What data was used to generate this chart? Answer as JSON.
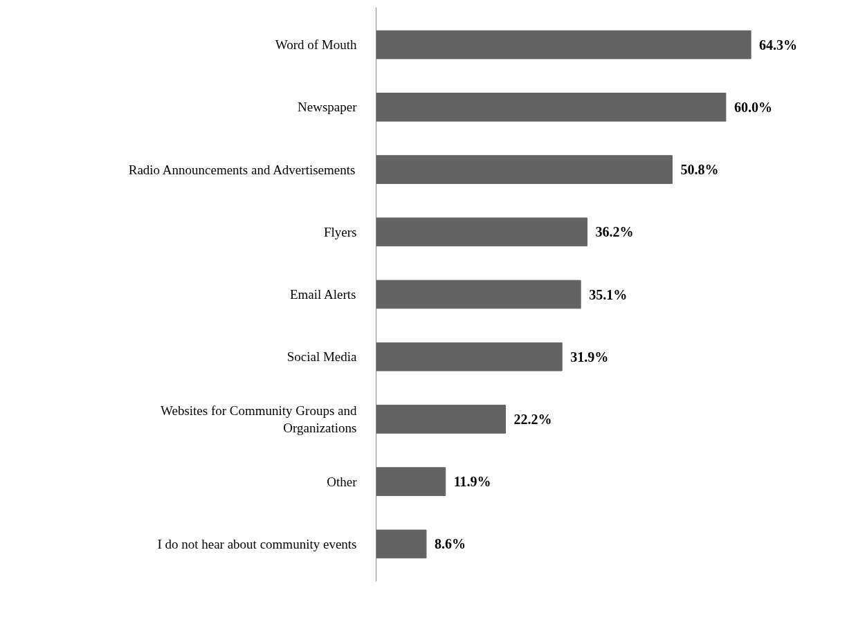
{
  "chart_data": {
    "type": "bar",
    "orientation": "horizontal",
    "categories": [
      "Word of Mouth",
      "Newspaper",
      "Radio Announcements and Advertisements",
      "Flyers",
      "Email Alerts",
      "Social Media",
      "Websites for Community Groups and Organizations",
      "Other",
      "I do not hear about community events"
    ],
    "values": [
      64.3,
      60.0,
      50.8,
      36.2,
      35.1,
      31.9,
      22.2,
      11.9,
      8.6
    ],
    "value_labels": [
      "64.3%",
      "60.0%",
      "50.8%",
      "36.2%",
      "35.1%",
      "31.9%",
      "22.2%",
      "11.9%",
      "8.6%"
    ],
    "color": "#636363",
    "grid": false,
    "tick_labels": "y"
  }
}
